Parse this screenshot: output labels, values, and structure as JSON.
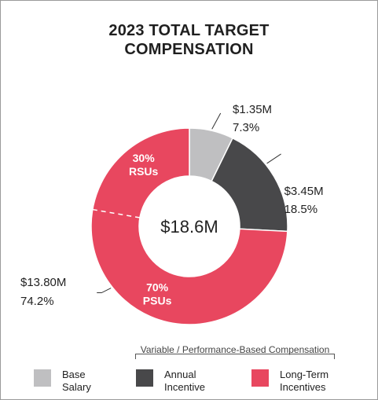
{
  "title": {
    "line1": "2023 TOTAL TARGET",
    "line2": "COMPENSATION"
  },
  "chart_data": {
    "type": "pie",
    "donut": true,
    "total_label": "$18.6M",
    "categories": [
      "Base Salary",
      "Annual Incentive",
      "Long-Term Incentives"
    ],
    "values": [
      1.35,
      3.45,
      13.8
    ],
    "value_labels": [
      "$1.35M",
      "$3.45M",
      "$13.80M"
    ],
    "percents": [
      7.3,
      18.5,
      74.2
    ],
    "percent_labels": [
      "7.3%",
      "18.5%",
      "74.2%"
    ],
    "colors": [
      "#bfbfc1",
      "#48484a",
      "#e8475f"
    ],
    "ltip_split": {
      "shares": [
        30,
        70
      ],
      "labels": [
        {
          "pct": "30%",
          "name": "RSUs"
        },
        {
          "pct": "70%",
          "name": "PSUs"
        }
      ]
    }
  },
  "legend": {
    "group_caption": "Variable / Performance-Based Compensation",
    "items": [
      {
        "line1": "Base",
        "line2": "Salary",
        "color": "#bfbfc1"
      },
      {
        "line1": "Annual",
        "line2": "Incentive",
        "color": "#48484a"
      },
      {
        "line1": "Long-Term",
        "line2": "Incentives",
        "color": "#e8475f"
      }
    ]
  }
}
